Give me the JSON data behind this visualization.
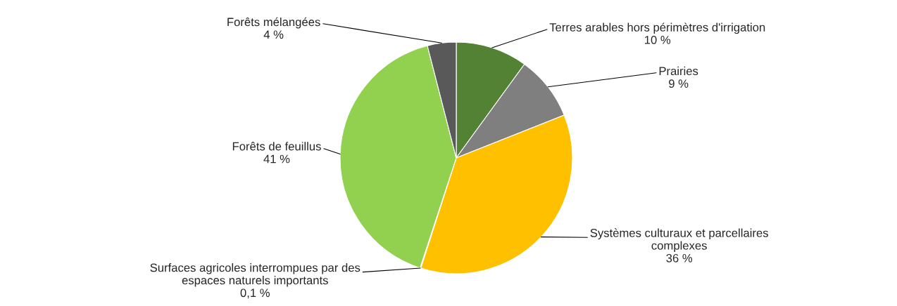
{
  "chart_data": {
    "type": "pie",
    "categories": [
      "Terres arables hors périmètres d'irrigation",
      "Prairies",
      "Systèmes culturaux et parcellaires\ncomplexes",
      "Surfaces agricoles interrompues par des\nespaces naturels importants",
      "Forêts de feuillus",
      "Forêts mélangées"
    ],
    "values": [
      10,
      9,
      36,
      0.1,
      41,
      4
    ],
    "value_labels": [
      "10 %",
      "9 %",
      "36 %",
      "0,1 %",
      "41 %",
      "4 %"
    ],
    "colors": [
      "#548235",
      "#7f7f7f",
      "#ffc000",
      "#a5a5a5",
      "#92d050",
      "#595959"
    ]
  }
}
